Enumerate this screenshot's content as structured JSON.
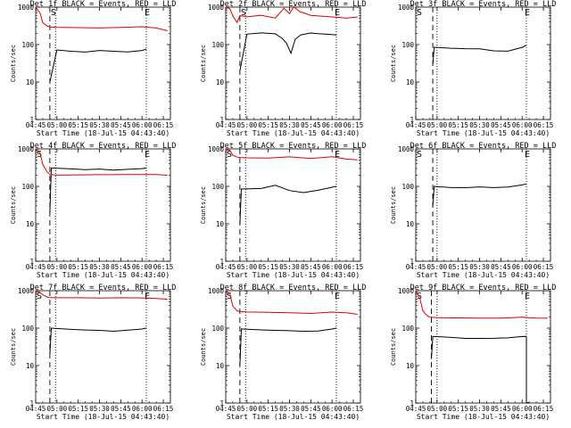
{
  "colors": {
    "events": "#000000",
    "lld": "#e00000",
    "background": "#ffffff"
  },
  "chart_data": [
    {
      "type": "line",
      "title": "Det 1f BLACK = Events, RED = LLD",
      "xlabel": "Start Time (18-Jul-15 04:43:40)",
      "ylabel": "Counts/sec",
      "yscale": "log",
      "ylim": [
        1,
        1000
      ],
      "xlim": [
        "04:45",
        "06:20"
      ],
      "x_ticks": [
        "04:45",
        "05:00",
        "05:15",
        "05:30",
        "05:45",
        "06:00",
        "06:15"
      ],
      "y_ticks": [
        "1",
        "10",
        "100",
        "1000"
      ],
      "markers": {
        "S": "04:55",
        "E": "06:03"
      },
      "dashed_line": "04:55",
      "dotted_lines": [
        "04:59",
        "06:03",
        "06:20"
      ],
      "series": [
        {
          "name": "Events",
          "color": "#000000",
          "x": [
            "04:55",
            "05:00",
            "05:10",
            "05:20",
            "05:30",
            "05:40",
            "05:50",
            "06:00",
            "06:03"
          ],
          "y": [
            10,
            72,
            68,
            65,
            72,
            68,
            65,
            70,
            75
          ]
        },
        {
          "name": "LLD",
          "color": "#e00000",
          "x": [
            "04:45",
            "04:48",
            "04:50",
            "04:53",
            "04:55",
            "05:00",
            "05:15",
            "05:30",
            "05:45",
            "06:00",
            "06:10",
            "06:18"
          ],
          "y": [
            1000,
            700,
            400,
            320,
            300,
            290,
            280,
            270,
            280,
            290,
            270,
            230
          ]
        }
      ]
    },
    {
      "type": "line",
      "title": "Det 2f BLACK = Events, RED = LLD",
      "xlabel": "Start Time (18-Jul-15 04:43:40)",
      "ylabel": "Counts/sec",
      "yscale": "log",
      "ylim": [
        1,
        1000
      ],
      "xlim": [
        "04:45",
        "06:20"
      ],
      "x_ticks": [
        "04:45",
        "05:00",
        "05:15",
        "05:30",
        "05:45",
        "06:00",
        "06:15"
      ],
      "y_ticks": [
        "1",
        "10",
        "100",
        "1000"
      ],
      "markers": {
        "S": "04:55",
        "E": "06:03"
      },
      "dashed_line": "04:55",
      "dotted_lines": [
        "04:59",
        "06:03",
        "06:20"
      ],
      "series": [
        {
          "name": "Events",
          "color": "#000000",
          "x": [
            "04:55",
            "05:00",
            "05:10",
            "05:20",
            "05:25",
            "05:28",
            "05:31",
            "05:34",
            "05:38",
            "05:45",
            "05:50",
            "06:00",
            "06:03"
          ],
          "y": [
            20,
            190,
            210,
            200,
            150,
            110,
            60,
            140,
            180,
            200,
            190,
            180,
            175
          ]
        },
        {
          "name": "LLD",
          "color": "#e00000",
          "x": [
            "04:45",
            "04:48",
            "04:50",
            "04:53",
            "04:55",
            "05:00",
            "05:10",
            "05:20",
            "05:26",
            "05:30",
            "05:33",
            "05:37",
            "05:45",
            "06:00",
            "06:10",
            "06:18"
          ],
          "y": [
            1000,
            900,
            600,
            400,
            600,
            550,
            600,
            500,
            900,
            650,
            1000,
            750,
            600,
            550,
            520,
            560
          ]
        }
      ]
    },
    {
      "type": "line",
      "title": "Det 3f BLACK = Events, RED = LLD",
      "xlabel": "Start Time (18-Jul-15 04:43:40)",
      "ylabel": "Counts/sec",
      "yscale": "log",
      "ylim": [
        1,
        1000
      ],
      "xlim": [
        "04:45",
        "06:20"
      ],
      "x_ticks": [
        "04:45",
        "05:00",
        "05:15",
        "05:30",
        "05:45",
        "06:00",
        "06:15"
      ],
      "y_ticks": [
        "1",
        "10",
        "100",
        "1000"
      ],
      "markers": {
        "S": "04:45",
        "E": "06:03"
      },
      "dashed_line": "04:57",
      "dotted_lines": [
        "05:00",
        "06:03",
        "06:20"
      ],
      "series": [
        {
          "name": "Events",
          "color": "#000000",
          "x": [
            "04:57",
            "04:58",
            "05:10",
            "05:20",
            "05:30",
            "05:40",
            "05:50",
            "06:00",
            "06:03"
          ],
          "y": [
            30,
            85,
            82,
            80,
            80,
            70,
            68,
            85,
            95
          ]
        }
      ]
    },
    {
      "type": "line",
      "title": "Det 4f BLACK = Events, RED = LLD",
      "xlabel": "Start Time (18-Jul-15 04:43:40)",
      "ylabel": "Counts/sec",
      "yscale": "log",
      "ylim": [
        1,
        1000
      ],
      "xlim": [
        "04:45",
        "06:20"
      ],
      "x_ticks": [
        "04:45",
        "05:00",
        "05:15",
        "05:30",
        "05:45",
        "06:00",
        "06:15"
      ],
      "y_ticks": [
        "1",
        "10",
        "100",
        "1000"
      ],
      "markers": {
        "S": "04:45",
        "E": "06:03"
      },
      "dashed_line": "04:55",
      "dotted_lines": [
        "04:59",
        "06:03",
        "06:20"
      ],
      "series": [
        {
          "name": "Events",
          "color": "#000000",
          "x": [
            "04:55",
            "04:56",
            "05:10",
            "05:20",
            "05:30",
            "05:40",
            "05:50",
            "06:00",
            "06:03"
          ],
          "y": [
            20,
            310,
            300,
            290,
            300,
            280,
            290,
            300,
            310
          ]
        },
        {
          "name": "LLD",
          "color": "#e00000",
          "x": [
            "04:45",
            "04:48",
            "04:50",
            "04:53",
            "04:55",
            "05:00",
            "05:15",
            "05:30",
            "05:45",
            "06:00",
            "06:10",
            "06:18"
          ],
          "y": [
            1000,
            800,
            400,
            250,
            210,
            200,
            200,
            200,
            200,
            200,
            200,
            195
          ]
        }
      ]
    },
    {
      "type": "line",
      "title": "Det 5f BLACK = Events, RED = LLD",
      "xlabel": "Start Time (18-Jul-15 04:43:40)",
      "ylabel": "Counts/sec",
      "yscale": "log",
      "ylim": [
        1,
        1000
      ],
      "xlim": [
        "04:45",
        "06:20"
      ],
      "x_ticks": [
        "04:45",
        "05:00",
        "05:15",
        "05:30",
        "05:45",
        "06:00",
        "06:15"
      ],
      "y_ticks": [
        "1",
        "10",
        "100",
        "1000"
      ],
      "markers": {
        "S": "04:45",
        "E": "06:03"
      },
      "dashed_line": "04:55",
      "dotted_lines": [
        "04:59",
        "06:03",
        "06:20"
      ],
      "series": [
        {
          "name": "Events",
          "color": "#000000",
          "x": [
            "04:55",
            "04:56",
            "05:10",
            "05:20",
            "05:30",
            "05:40",
            "05:50",
            "06:00",
            "06:03"
          ],
          "y": [
            10,
            85,
            90,
            110,
            80,
            70,
            80,
            95,
            100
          ]
        },
        {
          "name": "LLD",
          "color": "#e00000",
          "x": [
            "04:45",
            "04:48",
            "04:50",
            "04:53",
            "04:55",
            "05:00",
            "05:15",
            "05:30",
            "05:45",
            "06:00",
            "06:10",
            "06:18"
          ],
          "y": [
            1000,
            900,
            700,
            620,
            600,
            580,
            560,
            600,
            540,
            600,
            520,
            500
          ]
        }
      ]
    },
    {
      "type": "line",
      "title": "Det 6f BLACK = Events, RED = LLD",
      "xlabel": "Start Time (18-Jul-15 04:43:40)",
      "ylabel": "Counts/sec",
      "yscale": "log",
      "ylim": [
        1,
        1000
      ],
      "xlim": [
        "04:45",
        "06:20"
      ],
      "x_ticks": [
        "04:45",
        "05:00",
        "05:15",
        "05:30",
        "05:45",
        "06:00",
        "06:15"
      ],
      "y_ticks": [
        "1",
        "10",
        "100",
        "1000"
      ],
      "markers": {
        "S": "04:45",
        "E": "06:03"
      },
      "dashed_line": "04:57",
      "dotted_lines": [
        "05:00",
        "06:03",
        "06:20"
      ],
      "series": [
        {
          "name": "Events",
          "color": "#000000",
          "x": [
            "04:57",
            "04:58",
            "05:10",
            "05:20",
            "05:30",
            "05:40",
            "05:50",
            "06:00",
            "06:03"
          ],
          "y": [
            30,
            100,
            95,
            95,
            100,
            95,
            98,
            110,
            115
          ]
        }
      ]
    },
    {
      "type": "line",
      "title": "Det 7f BLACK = Events, RED = LLD",
      "xlabel": "Start Time (18-Jul-15 04:43:40)",
      "ylabel": "Counts/sec",
      "yscale": "log",
      "ylim": [
        1,
        1000
      ],
      "xlim": [
        "04:45",
        "06:20"
      ],
      "x_ticks": [
        "04:45",
        "05:00",
        "05:15",
        "05:30",
        "05:45",
        "06:00",
        "06:15"
      ],
      "y_ticks": [
        "1",
        "10",
        "100",
        "1000"
      ],
      "markers": {
        "S": "04:45",
        "E": "06:03"
      },
      "dashed_line": "04:55",
      "dotted_lines": [
        "04:59",
        "06:03",
        "06:20"
      ],
      "series": [
        {
          "name": "Events",
          "color": "#000000",
          "x": [
            "04:55",
            "04:56",
            "05:10",
            "05:20",
            "05:30",
            "05:40",
            "05:50",
            "06:00",
            "06:03"
          ],
          "y": [
            20,
            100,
            95,
            92,
            90,
            85,
            90,
            95,
            100
          ]
        },
        {
          "name": "LLD",
          "color": "#e00000",
          "x": [
            "04:45",
            "04:48",
            "04:50",
            "04:53",
            "04:55",
            "05:00",
            "05:15",
            "05:30",
            "05:45",
            "06:00",
            "06:10",
            "06:18"
          ],
          "y": [
            1000,
            900,
            800,
            700,
            660,
            650,
            640,
            620,
            630,
            620,
            600,
            580
          ]
        }
      ]
    },
    {
      "type": "line",
      "title": "Det 8f BLACK = Events, RED = LLD",
      "xlabel": "Start Time (18-Jul-15 04:43:40)",
      "ylabel": "Counts/sec",
      "yscale": "log",
      "ylim": [
        1,
        1000
      ],
      "xlim": [
        "04:45",
        "06:20"
      ],
      "x_ticks": [
        "04:45",
        "05:00",
        "05:15",
        "05:30",
        "05:45",
        "06:00",
        "06:15"
      ],
      "y_ticks": [
        "1",
        "10",
        "100",
        "1000"
      ],
      "markers": {
        "S": "04:45",
        "E": "06:03"
      },
      "dashed_line": "04:55",
      "dotted_lines": [
        "04:59",
        "06:03",
        "06:20"
      ],
      "series": [
        {
          "name": "Events",
          "color": "#000000",
          "x": [
            "04:55",
            "04:56",
            "05:10",
            "05:20",
            "05:30",
            "05:40",
            "05:50",
            "06:00",
            "06:03"
          ],
          "y": [
            10,
            95,
            92,
            90,
            88,
            85,
            85,
            95,
            100
          ]
        },
        {
          "name": "LLD",
          "color": "#e00000",
          "x": [
            "04:45",
            "04:48",
            "04:50",
            "04:53",
            "04:55",
            "05:00",
            "05:15",
            "05:30",
            "05:45",
            "06:00",
            "06:10",
            "06:18"
          ],
          "y": [
            1000,
            800,
            400,
            300,
            280,
            270,
            260,
            250,
            240,
            260,
            250,
            230
          ]
        }
      ]
    },
    {
      "type": "line",
      "title": "Det 9f BLACK = Events, RED = LLD",
      "xlabel": "Start Time (18-Jul-15 04:43:40)",
      "ylabel": "Counts/sec",
      "yscale": "log",
      "ylim": [
        1,
        1000
      ],
      "xlim": [
        "04:45",
        "06:20"
      ],
      "x_ticks": [
        "04:45",
        "05:00",
        "05:15",
        "05:30",
        "05:45",
        "06:00",
        "06:15"
      ],
      "y_ticks": [
        "1",
        "10",
        "100",
        "1000"
      ],
      "markers": {
        "S": "04:45",
        "E": "06:03"
      },
      "dashed_line": "04:56",
      "dotted_lines": [
        "05:00",
        "06:03",
        "06:20"
      ],
      "series": [
        {
          "name": "Events",
          "color": "#000000",
          "x": [
            "04:56",
            "04:57",
            "05:10",
            "05:20",
            "05:30",
            "05:40",
            "05:50",
            "06:00",
            "06:03",
            "06:03",
            "06:05"
          ],
          "y": [
            15,
            60,
            58,
            55,
            55,
            55,
            56,
            60,
            60,
            1,
            1
          ]
        },
        {
          "name": "LLD",
          "color": "#e00000",
          "x": [
            "04:45",
            "04:48",
            "04:50",
            "04:53",
            "04:55",
            "05:00",
            "05:15",
            "05:30",
            "05:45",
            "06:00",
            "06:10",
            "06:18"
          ],
          "y": [
            1000,
            600,
            300,
            220,
            200,
            190,
            185,
            180,
            180,
            190,
            180,
            180
          ]
        }
      ]
    }
  ]
}
